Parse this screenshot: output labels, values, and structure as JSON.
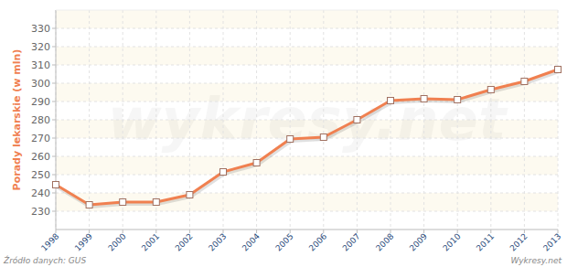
{
  "chart_data": {
    "type": "line",
    "y_label": "Porady lekarskie (w mln)",
    "annotations": [
      "Źródło danych: GUS",
      "Wykresy.net",
      "wykresy.net"
    ],
    "categories": [
      "1998",
      "1999",
      "2000",
      "2001",
      "2002",
      "2003",
      "2004",
      "2005",
      "2006",
      "2007",
      "2008",
      "2009",
      "2010",
      "2011",
      "2012",
      "2013"
    ],
    "values": [
      244.5,
      233.5,
      235,
      235,
      239,
      251.5,
      256.5,
      269.5,
      270.5,
      280,
      290.5,
      291.5,
      291,
      296.5,
      301,
      307.5
    ],
    "color": "#f08050",
    "marker": "square",
    "ylim": [
      220,
      340
    ],
    "yticks": [
      230,
      240,
      250,
      260,
      270,
      280,
      290,
      300,
      310,
      320,
      330
    ],
    "grid": true
  }
}
